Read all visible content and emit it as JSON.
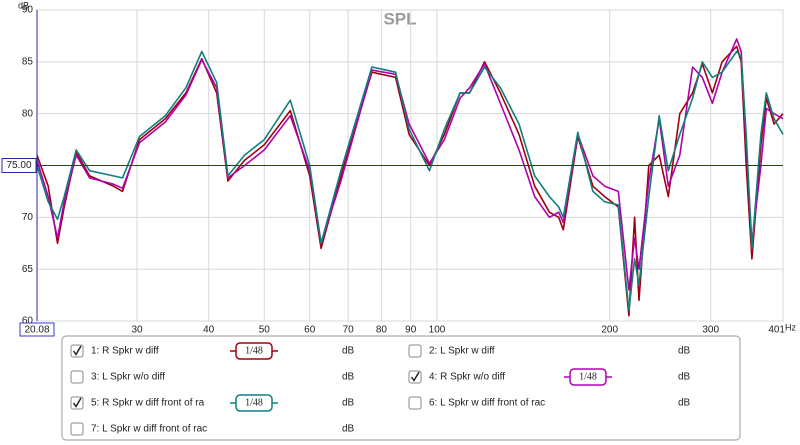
{
  "chart_data": {
    "type": "line",
    "title": "SPL",
    "y_unit": "dB",
    "x_unit": "Hz",
    "log_x": true,
    "grid": true,
    "xlim": [
      20.08,
      401
    ],
    "ylim": [
      60,
      90
    ],
    "xticks": [
      20.08,
      30,
      40,
      50,
      60,
      70,
      80,
      90,
      100,
      200,
      300,
      401
    ],
    "yticks": [
      60,
      65,
      70,
      75,
      80,
      85,
      90
    ],
    "cursor": {
      "value": 75,
      "label": "75.00",
      "color": "#2a2aa0"
    },
    "x": [
      20.08,
      21,
      21.8,
      22.4,
      23.5,
      24.8,
      27.3,
      28.3,
      30.3,
      33.6,
      36.5,
      38.9,
      41.3,
      43.2,
      46.2,
      50,
      55.5,
      60,
      62.8,
      68,
      77,
      84.7,
      89.4,
      97,
      103,
      109.7,
      114,
      121,
      129,
      139,
      148,
      157,
      163,
      166,
      176,
      187,
      196,
      207,
      216,
      221,
      225,
      234,
      244,
      253,
      265,
      279,
      290,
      302,
      314,
      333,
      339,
      346,
      354,
      367,
      375,
      387,
      401
    ],
    "series": [
      {
        "name": "1: R Spkr w diff",
        "color": "#a00010",
        "checked": true,
        "smoothing": "1/48",
        "unit": "dB",
        "values": [
          76,
          73,
          67.5,
          71,
          76.3,
          74,
          73,
          72.5,
          77.5,
          79.5,
          82,
          85.3,
          82,
          73.5,
          75.5,
          77,
          80.3,
          74,
          67,
          74,
          84,
          83.5,
          78,
          75,
          78,
          82,
          82,
          85,
          82,
          78,
          73,
          70.5,
          70,
          68.8,
          77.8,
          73,
          72,
          71,
          60.5,
          70,
          62,
          75,
          76,
          72,
          80,
          82,
          84.8,
          82,
          85,
          86.5,
          85,
          75,
          66,
          77,
          81.5,
          79,
          80
        ]
      },
      {
        "name": "2: L Spkr w diff",
        "color": "#2a8a2a",
        "checked": false,
        "unit": "dB"
      },
      {
        "name": "3: L Spkr w/o diff",
        "color": "#3a3aaa",
        "checked": false,
        "unit": "dB"
      },
      {
        "name": "4: R Spkr w/o diff",
        "color": "#b000b0",
        "checked": true,
        "smoothing": "1/48",
        "unit": "dB",
        "values": [
          75.5,
          72,
          68,
          71.5,
          76,
          73.8,
          73.2,
          72.8,
          77.2,
          79.2,
          81.8,
          85.2,
          82.5,
          73.8,
          75,
          76.5,
          79.8,
          74.5,
          67.5,
          73.5,
          84.2,
          83.8,
          79,
          75.2,
          77.5,
          81.5,
          82.5,
          84.8,
          81,
          76.5,
          72,
          70,
          70.5,
          69.5,
          78,
          74,
          73,
          72.5,
          63,
          68,
          65,
          73.5,
          79.5,
          73,
          76,
          84.5,
          83.5,
          81,
          84,
          87.2,
          86,
          77,
          67.5,
          75,
          80.5,
          80,
          79.5
        ]
      },
      {
        "name": "5: R Spkr w diff front of ra",
        "color": "#10807a",
        "checked": true,
        "smoothing": "1/48",
        "unit": "dB",
        "values": [
          75,
          71.5,
          69.8,
          72,
          76.5,
          74.5,
          74,
          73.8,
          77.8,
          79.8,
          82.5,
          86,
          83,
          74,
          76,
          77.5,
          81.3,
          75,
          67.5,
          74.5,
          84.5,
          84,
          78.5,
          74.5,
          78.5,
          82,
          82,
          84.5,
          82.5,
          79,
          74,
          72,
          71,
          70,
          78.2,
          72.5,
          71.5,
          71.2,
          61,
          66,
          63.5,
          72,
          79.8,
          74.5,
          78,
          81.5,
          85,
          83.5,
          84,
          86,
          85.5,
          78,
          67,
          78,
          82,
          79.5,
          78
        ]
      },
      {
        "name": "6: L Spkr w diff front of rac",
        "color": "#a08000",
        "checked": false,
        "unit": "dB"
      },
      {
        "name": "7: L Spkr w diff front of rac",
        "color": "#20a040",
        "checked": false,
        "unit": "dB"
      }
    ]
  }
}
